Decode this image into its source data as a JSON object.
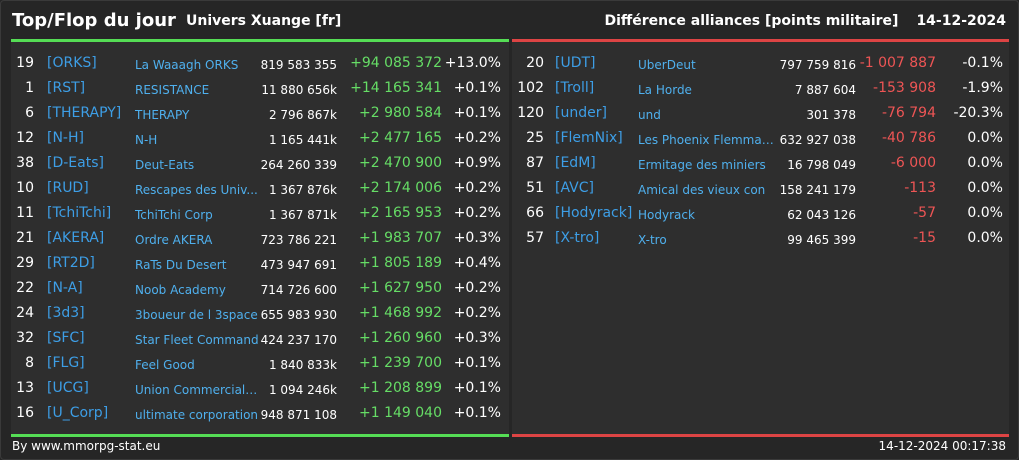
{
  "header": {
    "title": "Top/Flop du jour",
    "universe": "Univers Xuange [fr]",
    "subtitle": "Différence alliances [points militaire]",
    "date": "14-12-2024"
  },
  "colors": {
    "background": "#262626",
    "panel": "#2e2e2e",
    "top_accent": "#55dd55",
    "flop_accent": "#dd4444",
    "tag": "#3d9ee6",
    "positive": "#66dd66",
    "negative": "#ee5555"
  },
  "top": [
    {
      "rank": "19",
      "tag": "[ORKS]",
      "name": "La Waaagh ORKS",
      "points": "819 583 355",
      "diff": "+94 085 372",
      "pct": "+13.0%"
    },
    {
      "rank": "1",
      "tag": "[RST]",
      "name": "RESISTANCE",
      "points": "11 880 656k",
      "diff": "+14 165 341",
      "pct": "+0.1%"
    },
    {
      "rank": "6",
      "tag": "[THERAPY]",
      "name": "THERAPY",
      "points": "2 796 867k",
      "diff": "+2 980 584",
      "pct": "+0.1%"
    },
    {
      "rank": "12",
      "tag": "[N-H]",
      "name": "N-H",
      "points": "1 165 441k",
      "diff": "+2 477 165",
      "pct": "+0.2%"
    },
    {
      "rank": "38",
      "tag": "[D-Eats]",
      "name": "Deut-Eats",
      "points": "264 260 339",
      "diff": "+2 470 900",
      "pct": "+0.9%"
    },
    {
      "rank": "10",
      "tag": "[RUD]",
      "name": "Rescapes des Univ...",
      "points": "1 367 876k",
      "diff": "+2 174 006",
      "pct": "+0.2%"
    },
    {
      "rank": "11",
      "tag": "[TchiTchi]",
      "name": "TchiTchi Corp",
      "points": "1 367 871k",
      "diff": "+2 165 953",
      "pct": "+0.2%"
    },
    {
      "rank": "21",
      "tag": "[AKERA]",
      "name": "Ordre AKERA",
      "points": "723 786 221",
      "diff": "+1 983 707",
      "pct": "+0.3%"
    },
    {
      "rank": "29",
      "tag": "[RT2D]",
      "name": "RaTs Du Desert",
      "points": "473 947 691",
      "diff": "+1 805 189",
      "pct": "+0.4%"
    },
    {
      "rank": "22",
      "tag": "[N-A]",
      "name": "Noob Academy",
      "points": "714 726 600",
      "diff": "+1 627 950",
      "pct": "+0.2%"
    },
    {
      "rank": "24",
      "tag": "[3d3]",
      "name": "3boueur de l 3space",
      "points": "655 983 930",
      "diff": "+1 468 992",
      "pct": "+0.2%"
    },
    {
      "rank": "32",
      "tag": "[SFC]",
      "name": "Star Fleet Command",
      "points": "424 237 170",
      "diff": "+1 260 960",
      "pct": "+0.3%"
    },
    {
      "rank": "8",
      "tag": "[FLG]",
      "name": "Feel Good",
      "points": "1 840 833k",
      "diff": "+1 239 700",
      "pct": "+0.1%"
    },
    {
      "rank": "13",
      "tag": "[UCG]",
      "name": "Union Commerciale...",
      "points": "1 094 246k",
      "diff": "+1 208 899",
      "pct": "+0.1%"
    },
    {
      "rank": "16",
      "tag": "[U_Corp]",
      "name": "ultimate corporation",
      "points": "948 871 108",
      "diff": "+1 149 040",
      "pct": "+0.1%"
    }
  ],
  "flop": [
    {
      "rank": "20",
      "tag": "[UDT]",
      "name": "UberDeut",
      "points": "797 759 816",
      "diff": "-1 007 887",
      "pct": "-0.1%"
    },
    {
      "rank": "102",
      "tag": "[Troll]",
      "name": "La Horde",
      "points": "7 887 604",
      "diff": "-153 908",
      "pct": "-1.9%"
    },
    {
      "rank": "120",
      "tag": "[under]",
      "name": "und",
      "points": "301 378",
      "diff": "-76 794",
      "pct": "-20.3%"
    },
    {
      "rank": "25",
      "tag": "[FlemNix]",
      "name": "Les Phoenix Flemmards",
      "points": "632 927 038",
      "diff": "-40 786",
      "pct": "0.0%"
    },
    {
      "rank": "87",
      "tag": "[EdM]",
      "name": "Ermitage des miniers",
      "points": "16 798 049",
      "diff": "-6 000",
      "pct": "0.0%"
    },
    {
      "rank": "51",
      "tag": "[AVC]",
      "name": "Amical des vieux con",
      "points": "158 241 179",
      "diff": "-113",
      "pct": "0.0%"
    },
    {
      "rank": "66",
      "tag": "[Hodyrack]",
      "name": "Hodyrack",
      "points": "62 043 126",
      "diff": "-57",
      "pct": "0.0%"
    },
    {
      "rank": "57",
      "tag": "[X-tro]",
      "name": "X-tro",
      "points": "99 465 399",
      "diff": "-15",
      "pct": "0.0%"
    }
  ],
  "footer": {
    "credit": "By www.mmorpg-stat.eu",
    "timestamp": "14-12-2024 00:17:38"
  }
}
